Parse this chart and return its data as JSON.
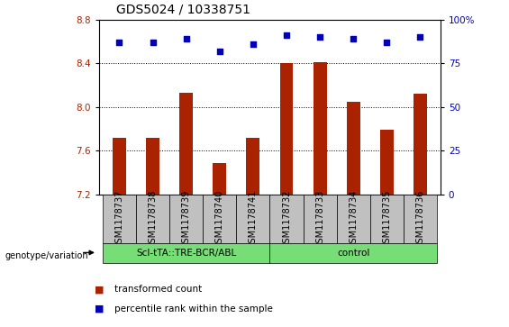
{
  "title": "GDS5024 / 10338751",
  "samples": [
    "GSM1178737",
    "GSM1178738",
    "GSM1178739",
    "GSM1178740",
    "GSM1178741",
    "GSM1178732",
    "GSM1178733",
    "GSM1178734",
    "GSM1178735",
    "GSM1178736"
  ],
  "red_values": [
    7.72,
    7.72,
    8.13,
    7.49,
    7.72,
    8.4,
    8.41,
    8.05,
    7.79,
    8.12
  ],
  "blue_values": [
    87,
    87,
    89,
    82,
    86,
    91,
    90,
    89,
    87,
    90
  ],
  "ylim_left": [
    7.2,
    8.8
  ],
  "ylim_right": [
    0,
    100
  ],
  "yticks_left": [
    7.2,
    7.6,
    8.0,
    8.4,
    8.8
  ],
  "yticks_right": [
    0,
    25,
    50,
    75,
    100
  ],
  "group1_label": "Scl-tTA::TRE-BCR/ABL",
  "group2_label": "control",
  "group1_count": 5,
  "group2_count": 5,
  "green_color": "#77DD77",
  "bar_color": "#AA2200",
  "dot_color": "#0000BB",
  "tick_bg_color": "#C0C0C0",
  "legend_bar_label": "transformed count",
  "legend_dot_label": "percentile rank within the sample",
  "genotype_label": "genotype/variation",
  "title_fontsize": 10,
  "tick_fontsize": 7.5,
  "label_fontsize": 7,
  "bar_width": 0.4,
  "dot_size": 25
}
